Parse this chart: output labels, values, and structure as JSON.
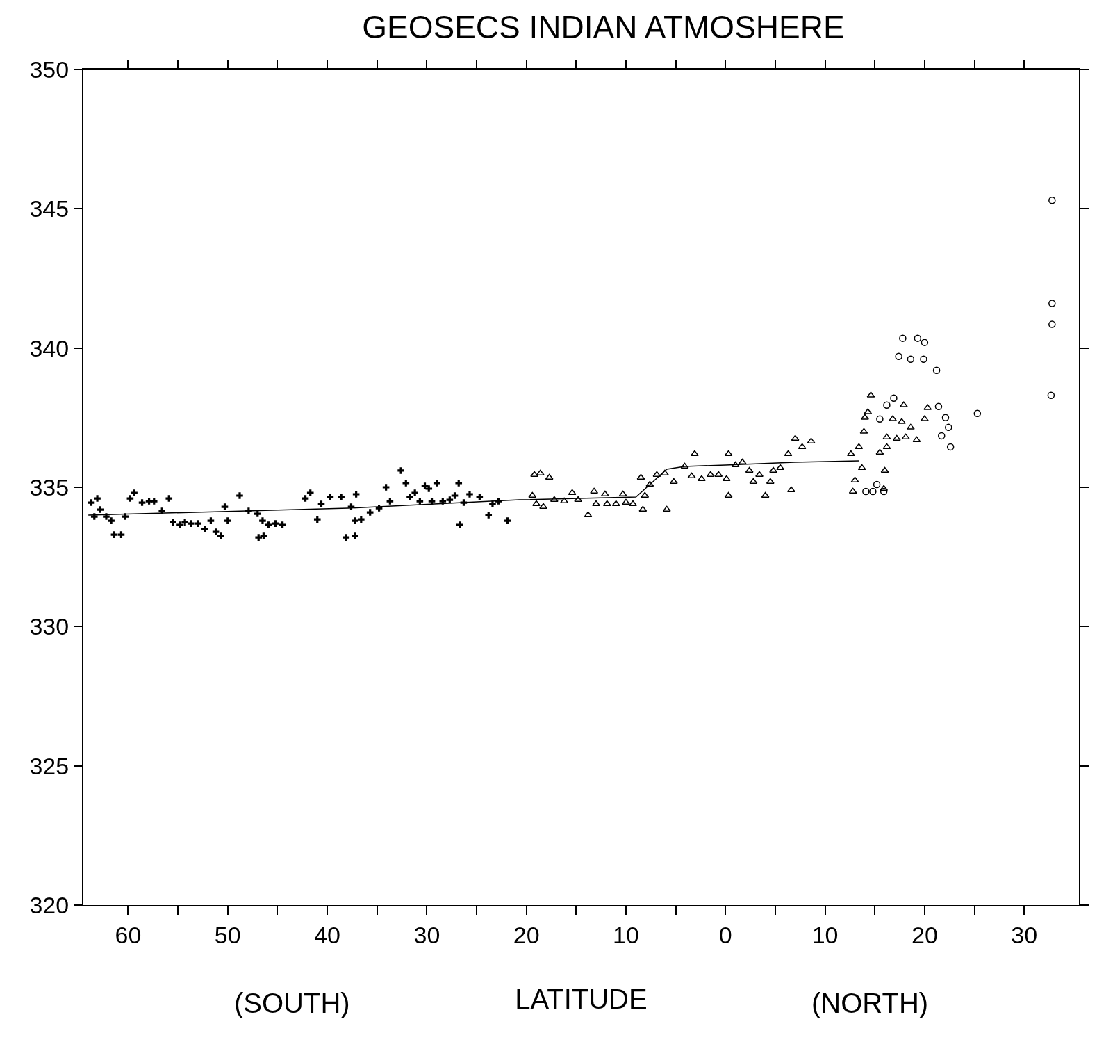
{
  "chart_data": {
    "type": "scatter",
    "title": "GEOSECS INDIAN ATMOSHERE",
    "xlabel": "LATITUDE",
    "annotations": [
      "(SOUTH)",
      "(NORTH)"
    ],
    "xlim": [
      -64.5,
      35.5
    ],
    "ylim": [
      320,
      350
    ],
    "xticks": [
      {
        "value": -60,
        "label": "60"
      },
      {
        "value": -55,
        "label": null
      },
      {
        "value": -50,
        "label": "50"
      },
      {
        "value": -45,
        "label": null
      },
      {
        "value": -40,
        "label": "40"
      },
      {
        "value": -35,
        "label": null
      },
      {
        "value": -30,
        "label": "30"
      },
      {
        "value": -25,
        "label": null
      },
      {
        "value": -20,
        "label": "20"
      },
      {
        "value": -15,
        "label": null
      },
      {
        "value": -10,
        "label": "10"
      },
      {
        "value": -5,
        "label": null
      },
      0,
      {
        "value": 5,
        "label": null
      },
      {
        "value": 10,
        "label": "10"
      },
      {
        "value": 15,
        "label": null
      },
      {
        "value": 20,
        "label": "20"
      },
      {
        "value": 25,
        "label": null
      },
      {
        "value": 30,
        "label": "30"
      }
    ],
    "yticks": [
      320,
      325,
      330,
      335,
      340,
      345,
      350
    ],
    "grid": false,
    "legend": false,
    "series": [
      {
        "marker": "cross",
        "color": "#000000",
        "x": [
          -63.7,
          -63.1,
          -63.4,
          -62.8,
          -62.2,
          -61.7,
          -61.4,
          -60.7,
          -60.3,
          -59.8,
          -59.4,
          -58.6,
          -57.9,
          -57.4,
          -56.6,
          -55.9,
          -55.5,
          -54.8,
          -54.3,
          -53.7,
          -53.0,
          -52.3,
          -51.7,
          -51.2,
          -50.7,
          -50.3,
          -50.0,
          -48.8,
          -47.9,
          -47.0,
          -46.9,
          -46.4,
          -46.5,
          -45.9,
          -45.2,
          -44.5,
          -42.2,
          -41.7,
          -41.0,
          -40.6,
          -39.7,
          -38.6,
          -38.1,
          -37.6,
          -37.2,
          -37.1,
          -37.2,
          -36.6,
          -35.7,
          -34.8,
          -34.1,
          -33.7,
          -32.6,
          -32.1,
          -31.7,
          -31.2,
          -30.7,
          -30.2,
          -29.8,
          -29.5,
          -29.0,
          -28.4,
          -27.7,
          -27.2,
          -26.8,
          -26.7,
          -26.3,
          -25.7,
          -24.7,
          -23.8,
          -23.4,
          -22.8,
          -21.9
        ],
        "values": [
          334.45,
          334.6,
          333.95,
          334.2,
          333.95,
          333.8,
          333.3,
          333.3,
          333.95,
          334.6,
          334.8,
          334.45,
          334.5,
          334.5,
          334.15,
          334.6,
          333.75,
          333.65,
          333.75,
          333.7,
          333.7,
          333.5,
          333.8,
          333.4,
          333.25,
          334.3,
          333.8,
          334.7,
          334.15,
          334.05,
          333.2,
          333.25,
          333.8,
          333.65,
          333.7,
          333.65,
          334.6,
          334.8,
          333.85,
          334.4,
          334.65,
          334.65,
          333.2,
          334.3,
          333.25,
          334.75,
          333.8,
          333.85,
          334.1,
          334.25,
          335.0,
          334.5,
          335.6,
          335.15,
          334.65,
          334.8,
          334.5,
          335.05,
          334.95,
          334.5,
          335.15,
          334.5,
          334.55,
          334.7,
          335.15,
          333.65,
          334.45,
          334.75,
          334.65,
          334.0,
          334.4,
          334.5,
          333.8
        ]
      },
      {
        "marker": "triangle",
        "color": "#000000",
        "x": [
          -19.2,
          -18.6,
          -19.4,
          -19.0,
          -18.3,
          -17.7,
          -17.2,
          -16.2,
          -15.4,
          -14.8,
          -13.8,
          -13.2,
          -13.0,
          -12.1,
          -11.9,
          -11.0,
          -10.3,
          -10.0,
          -9.3,
          -8.5,
          -8.3,
          -8.1,
          -7.6,
          -6.9,
          -6.1,
          -5.9,
          -5.2,
          -4.1,
          -3.1,
          -3.4,
          -2.4,
          -1.5,
          -0.7,
          0.3,
          0.3,
          0.1,
          1.0,
          1.7,
          2.4,
          2.8,
          3.4,
          4.0,
          4.5,
          4.8,
          5.5,
          6.3,
          6.6,
          7.0,
          7.7,
          8.6,
          12.6,
          13.4,
          13.9,
          14.3,
          14.6,
          14.0,
          12.8,
          13.0,
          13.7,
          15.5,
          16.2,
          16.2,
          16.0,
          15.9,
          16.8,
          17.7,
          17.2,
          18.1,
          18.6,
          19.2,
          20.0,
          20.3,
          17.9
        ],
        "values": [
          335.45,
          335.5,
          334.7,
          334.4,
          334.3,
          335.35,
          334.55,
          334.5,
          334.8,
          334.55,
          334.0,
          334.85,
          334.4,
          334.75,
          334.4,
          334.4,
          334.75,
          334.45,
          334.4,
          335.35,
          334.2,
          334.7,
          335.1,
          335.45,
          335.5,
          334.2,
          335.2,
          335.75,
          336.2,
          335.4,
          335.3,
          335.45,
          335.45,
          336.2,
          334.7,
          335.3,
          335.8,
          335.9,
          335.6,
          335.2,
          335.45,
          334.7,
          335.2,
          335.6,
          335.7,
          336.2,
          334.9,
          336.75,
          336.45,
          336.65,
          336.2,
          336.45,
          337.0,
          337.7,
          338.3,
          337.5,
          334.85,
          335.25,
          335.7,
          336.25,
          336.8,
          336.45,
          335.6,
          334.95,
          337.45,
          337.35,
          336.75,
          336.8,
          337.15,
          336.7,
          337.45,
          337.85,
          337.95
        ]
      },
      {
        "marker": "circle",
        "color": "#000000",
        "x": [
          17.8,
          17.4,
          18.6,
          19.3,
          20.0,
          19.9,
          21.2,
          21.4,
          16.9,
          16.2,
          15.5,
          22.1,
          22.4,
          21.7,
          22.6,
          25.3,
          32.8,
          32.8,
          32.8,
          32.7,
          14.1,
          14.8,
          15.9,
          15.2
        ],
        "values": [
          340.35,
          339.7,
          339.6,
          340.35,
          340.2,
          339.6,
          339.2,
          337.9,
          338.2,
          337.95,
          337.45,
          337.5,
          337.15,
          336.85,
          336.45,
          337.65,
          345.3,
          341.6,
          340.85,
          338.3,
          334.85,
          334.85,
          334.85,
          335.1
        ]
      },
      {
        "type": "line",
        "marker": "none",
        "line_style": "solid",
        "color": "#000000",
        "x": [
          -64.0,
          -37.9,
          -20.7,
          -9.0,
          -7.6,
          -5.9,
          -4.1,
          0.0,
          6.9,
          13.4
        ],
        "values": [
          334.0,
          334.25,
          334.55,
          334.65,
          335.1,
          335.65,
          335.75,
          335.8,
          335.9,
          335.95
        ]
      }
    ]
  }
}
